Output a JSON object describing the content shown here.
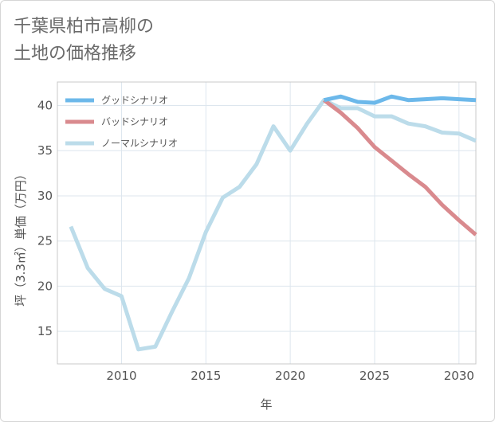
{
  "chart_data": {
    "type": "line",
    "title_lines": [
      "千葉県柏市高柳の",
      "土地の価格推移"
    ],
    "xlabel": "年",
    "ylabel": "坪（3.3㎡）単価（万円）",
    "xlim": [
      2006.2,
      2031
    ],
    "ylim": [
      11.4,
      42.6
    ],
    "x_ticks": [
      2010,
      2015,
      2020,
      2025,
      2030
    ],
    "y_ticks": [
      15,
      20,
      25,
      30,
      35,
      40
    ],
    "grid": true,
    "legend_position": "top-left",
    "series": [
      {
        "name": "グッドシナリオ",
        "color": "#6cb8ea",
        "points": [
          [
            2022,
            40.6
          ],
          [
            2023,
            41.0
          ],
          [
            2024,
            40.4
          ],
          [
            2025,
            40.3
          ],
          [
            2026,
            41.0
          ],
          [
            2027,
            40.6
          ],
          [
            2028,
            40.7
          ],
          [
            2029,
            40.8
          ],
          [
            2030,
            40.7
          ],
          [
            2031,
            40.6
          ]
        ]
      },
      {
        "name": "バッドシナリオ",
        "color": "#d98a8e",
        "points": [
          [
            2022,
            40.6
          ],
          [
            2023,
            39.2
          ],
          [
            2024,
            37.5
          ],
          [
            2025,
            35.4
          ],
          [
            2026,
            33.9
          ],
          [
            2027,
            32.4
          ],
          [
            2028,
            31.0
          ],
          [
            2029,
            29.0
          ],
          [
            2030,
            27.3
          ],
          [
            2031,
            25.7
          ]
        ]
      },
      {
        "name": "ノーマルシナリオ",
        "color": "#bcdcea",
        "points": [
          [
            2007,
            26.6
          ],
          [
            2008,
            22.0
          ],
          [
            2009,
            19.7
          ],
          [
            2010,
            18.9
          ],
          [
            2011,
            13.0
          ],
          [
            2012,
            13.3
          ],
          [
            2013,
            17.2
          ],
          [
            2014,
            20.9
          ],
          [
            2015,
            26.0
          ],
          [
            2016,
            29.8
          ],
          [
            2017,
            31.0
          ],
          [
            2018,
            33.5
          ],
          [
            2019,
            37.7
          ],
          [
            2020,
            35.0
          ],
          [
            2021,
            38.0
          ],
          [
            2022,
            40.6
          ],
          [
            2023,
            39.7
          ],
          [
            2024,
            39.7
          ],
          [
            2025,
            38.8
          ],
          [
            2026,
            38.8
          ],
          [
            2027,
            38.0
          ],
          [
            2028,
            37.7
          ],
          [
            2029,
            37.0
          ],
          [
            2030,
            36.9
          ],
          [
            2031,
            36.1
          ]
        ]
      }
    ]
  }
}
